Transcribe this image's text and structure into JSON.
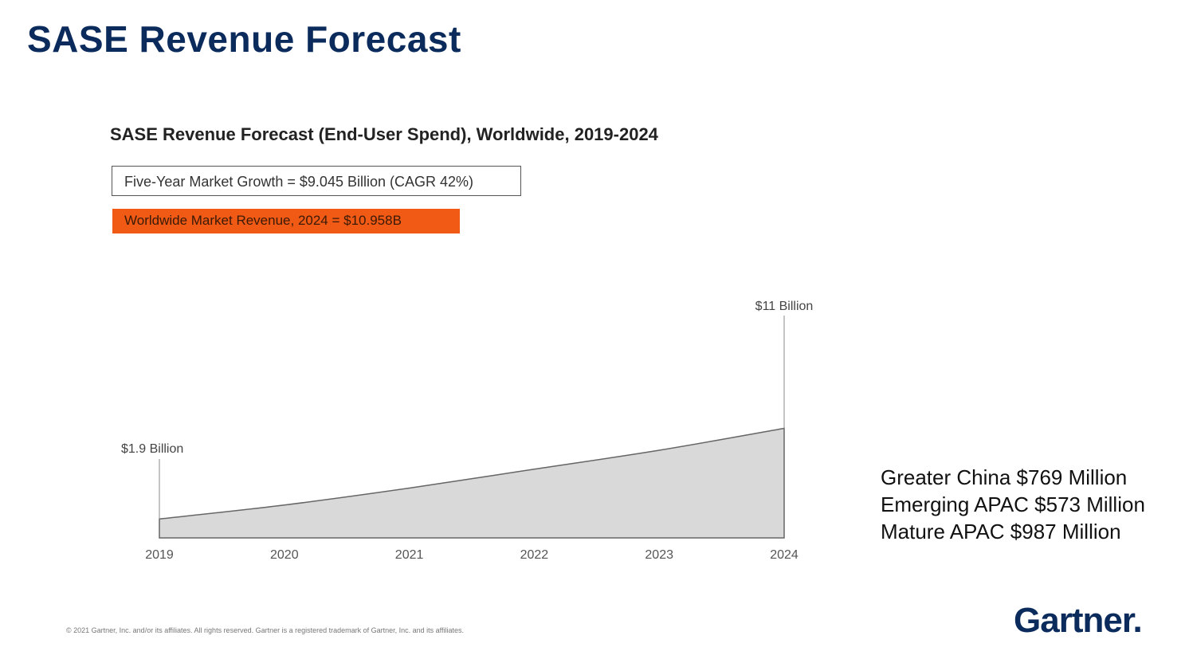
{
  "page": {
    "title": "SASE Revenue Forecast",
    "footer": "© 2021 Gartner, Inc. and/or its affiliates. All rights reserved. Gartner is a registered trademark of Gartner, Inc. and its affiliates.",
    "logo": "Gartner."
  },
  "callouts": {
    "growth": "Five-Year Market Growth = $9.045 Billion (CAGR 42%)",
    "revenue": "Worldwide Market Revenue, 2024 = $10.958B"
  },
  "regions": [
    "Greater China $769 Million",
    "Emerging APAC $573 Million",
    "Mature APAC $987 Million"
  ],
  "colors": {
    "title": "#0b2b5c",
    "accent": "#f05a14",
    "area_fill": "#d9d9d9",
    "area_stroke": "#666666"
  },
  "chart_data": {
    "type": "area",
    "title": "SASE Revenue Forecast (End-User Spend), Worldwide, 2019-2024",
    "categories": [
      "2019",
      "2020",
      "2021",
      "2022",
      "2023",
      "2024"
    ],
    "values": [
      1.9,
      3.3,
      5.0,
      6.9,
      8.8,
      11.0
    ],
    "units": "Billion USD",
    "ylim": [
      0,
      11
    ],
    "annotations": [
      {
        "category": "2019",
        "label": "$1.9 Billion"
      },
      {
        "category": "2024",
        "label": "$11 Billion"
      }
    ],
    "grid": false,
    "legend": "none"
  }
}
